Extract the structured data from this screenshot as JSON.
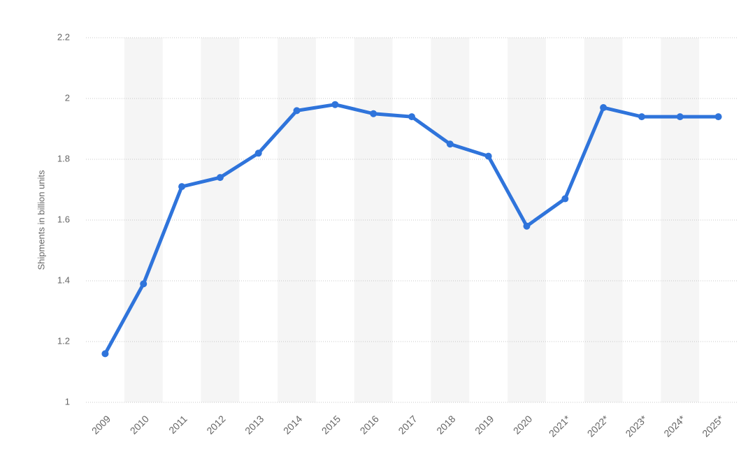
{
  "chart_data": {
    "type": "line",
    "y_label": "Shipments in billion units",
    "categories": [
      "2009",
      "2010",
      "2011",
      "2012",
      "2013",
      "2014",
      "2015",
      "2016",
      "2017",
      "2018",
      "2019",
      "2020",
      "2021*",
      "2022*",
      "2023*",
      "2024*",
      "2025*"
    ],
    "values": [
      1.16,
      1.39,
      1.71,
      1.74,
      1.82,
      1.96,
      1.98,
      1.95,
      1.94,
      1.85,
      1.81,
      1.58,
      1.67,
      1.97,
      1.94,
      1.94,
      1.94
    ],
    "color": "#2f74db",
    "ylim": [
      1,
      2.2
    ],
    "yticks": [
      1,
      1.2,
      1.4,
      1.6,
      1.8,
      2,
      2.2
    ],
    "grid": true
  }
}
